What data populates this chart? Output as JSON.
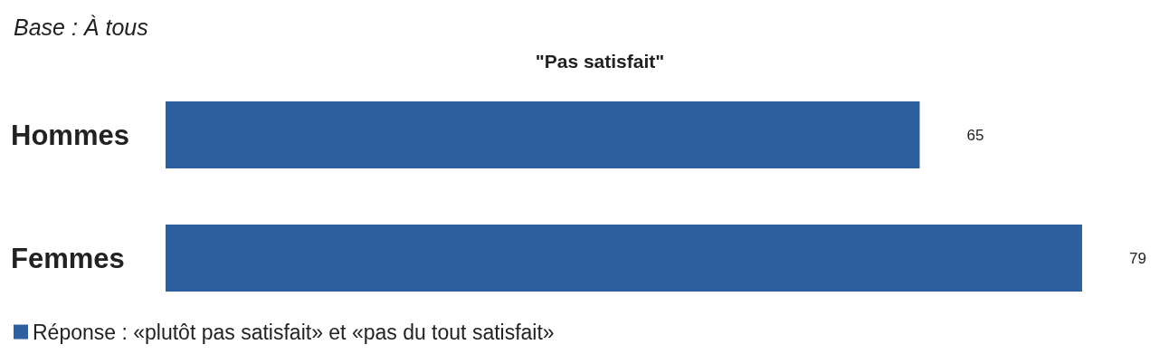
{
  "chart_data": {
    "type": "bar",
    "orientation": "horizontal",
    "title": "\"Pas satisfait\"",
    "subtitle": "Base : À tous",
    "categories": [
      "Hommes",
      "Femmes"
    ],
    "series": [
      {
        "name": "Réponse : «plutôt pas satisfait» et «pas du tout satisfait»",
        "color": "#2e5f9e",
        "values": [
          65,
          79
        ]
      }
    ],
    "data_labels": true,
    "legend": "bottom left"
  }
}
